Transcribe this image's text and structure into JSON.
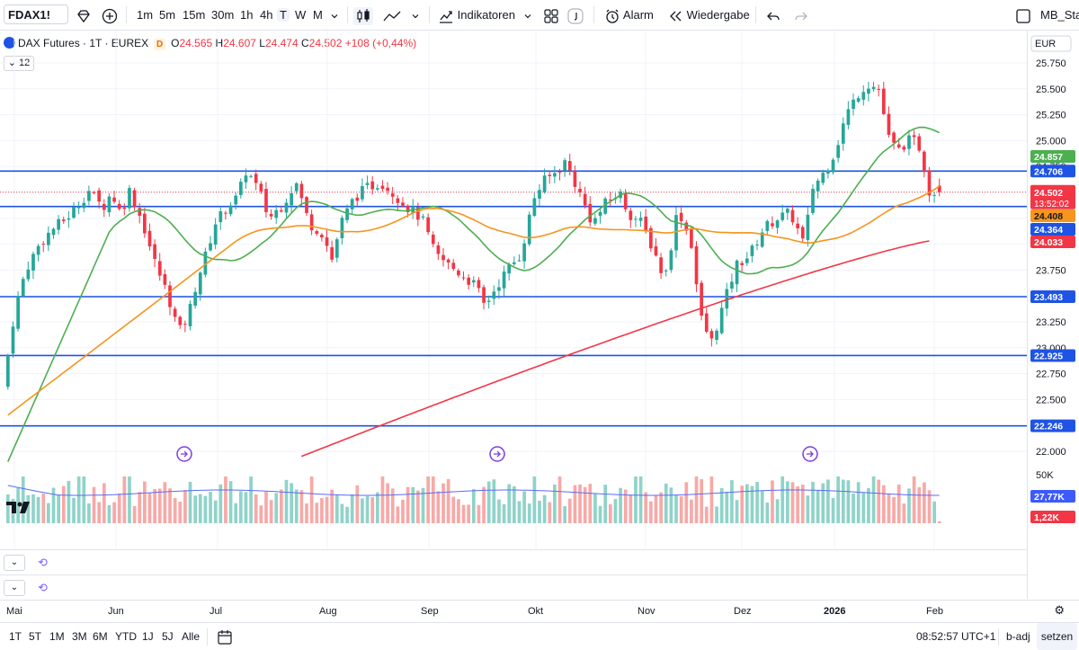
{
  "toolbar": {
    "symbol": "FDAX1!",
    "timeframes": [
      "1m",
      "5m",
      "15m",
      "30m",
      "1h",
      "4h",
      "T",
      "W",
      "M"
    ],
    "active_timeframe": "T",
    "indicators_label": "Indikatoren",
    "alarm_label": "Alarm",
    "replay_label": "Wiedergabe",
    "layout_name": "MB_Stan"
  },
  "legend": {
    "title": "DAX Futures · 1T · EUREX",
    "badge": "D",
    "o_label": "O",
    "o": "24.565",
    "h_label": "H",
    "h": "24.607",
    "l_label": "L",
    "l": "24.474",
    "c_label": "C",
    "c": "24.502",
    "change": "+108 (+0,44%)",
    "indicator_count": "12"
  },
  "price_axis": {
    "currency": "EUR",
    "ticks": [
      "25.750",
      "25.500",
      "25.250",
      "25.000",
      "24.750",
      "24.500",
      "24.250",
      "24.000",
      "23.750",
      "23.500",
      "23.250",
      "23.000",
      "22.750",
      "22.500",
      "22.250",
      "22.000"
    ],
    "volume_tick": "50K"
  },
  "labels": {
    "ma_green": "24.857",
    "hline_1": "24.706",
    "price_current": "24.502",
    "countdown": "13:52:02",
    "ma_orange": "24.408",
    "hline_2": "24.364",
    "ma_red": "24.033",
    "hline_3": "23.493",
    "hline_4": "22.925",
    "hline_5": "22.246",
    "vol_ma": "27,77K",
    "vol_current": "1,22K"
  },
  "time_axis": [
    "Mai",
    "Jun",
    "Jul",
    "Aug",
    "Sep",
    "Okt",
    "Nov",
    "Dez",
    "2026",
    "Feb"
  ],
  "bottombar": {
    "ranges": [
      "1T",
      "5T",
      "1M",
      "3M",
      "6M",
      "YTD",
      "1J",
      "5J",
      "Alle"
    ],
    "clock": "08:52:57 UTC+1",
    "adj": "b-adj",
    "settings": "setzen"
  },
  "colors": {
    "up": "#26a69a",
    "down": "#f23645",
    "hline": "#1e53e5",
    "ma_fast": "#4caf50",
    "ma_mid": "#f7941d",
    "ma_slow": "#f23645"
  }
}
